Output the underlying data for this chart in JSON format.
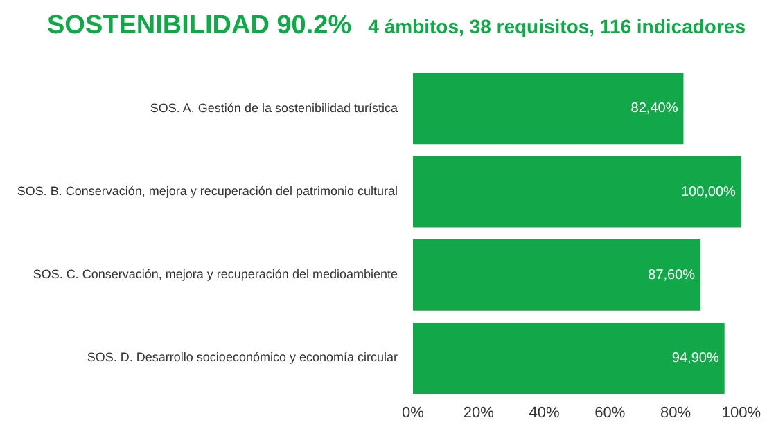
{
  "chart_data": {
    "type": "bar",
    "orientation": "horizontal",
    "title": "SOSTENIBILIDAD 90.2%",
    "subtitle": "4 ámbitos, 38 requisitos, 116 indicadores",
    "categories": [
      "SOS. A. Gestión de la sostenibilidad turística",
      "SOS. B. Conservación, mejora y recuperación del patrimonio cultural",
      "SOS. C. Conservación, mejora y recuperación del medioambiente",
      "SOS. D. Desarrollo socioeconómico y economía circular"
    ],
    "values": [
      82.4,
      100,
      87.6,
      94.9
    ],
    "value_labels": [
      "82,40%",
      "100,00%",
      "87,60%",
      "94,90%"
    ],
    "color": "#12a84a",
    "xlim": [
      0,
      100
    ],
    "xticks": [
      {
        "value": 0,
        "label": "0%"
      },
      {
        "value": 20,
        "label": "20%"
      },
      {
        "value": 40,
        "label": "40%"
      },
      {
        "value": 60,
        "label": "60%"
      },
      {
        "value": 80,
        "label": "80%"
      },
      {
        "value": 100,
        "label": "100%"
      }
    ],
    "grid": false,
    "legend": false
  }
}
